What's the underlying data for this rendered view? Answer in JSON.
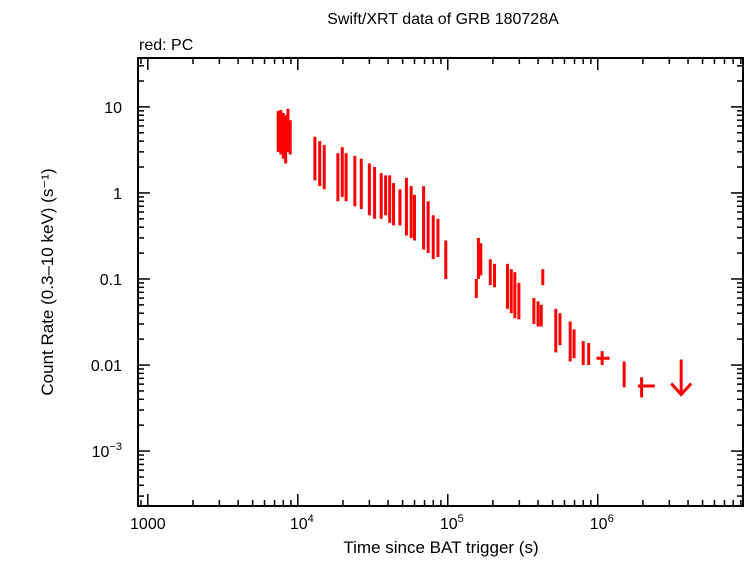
{
  "chart_data": {
    "type": "scatter",
    "title": "Swift/XRT data of GRB 180728A",
    "subtitle": "red: PC",
    "xlabel": "Time since BAT trigger (s)",
    "ylabel": "Count Rate (0.3–10 keV) (s⁻¹)",
    "xscale": "log",
    "yscale": "log",
    "xlim": [
      860,
      9300000
    ],
    "ylim": [
      0.00023,
      37
    ],
    "grid": false,
    "color": "#ff0000",
    "x_ticks": [
      {
        "value": 1000,
        "base": "1000",
        "exp": ""
      },
      {
        "value": 10000,
        "base": "10",
        "exp": "4"
      },
      {
        "value": 100000,
        "base": "10",
        "exp": "5"
      },
      {
        "value": 1000000,
        "base": "10",
        "exp": "6"
      }
    ],
    "y_ticks": [
      {
        "value": 10,
        "base": "10",
        "exp": ""
      },
      {
        "value": 1,
        "base": "1",
        "exp": ""
      },
      {
        "value": 0.1,
        "base": "0.1",
        "exp": ""
      },
      {
        "value": 0.01,
        "base": "0.01",
        "exp": ""
      },
      {
        "value": 0.001,
        "base": "10",
        "exp": "−3"
      }
    ],
    "series": [
      {
        "points": [
          {
            "x": 7400,
            "y": 5.5,
            "ylo": 3.0,
            "yhi": 9.0
          },
          {
            "x": 7700,
            "y": 5.0,
            "ylo": 2.8,
            "yhi": 9.2
          },
          {
            "x": 8000,
            "y": 4.5,
            "ylo": 2.5,
            "yhi": 8.5
          },
          {
            "x": 8300,
            "y": 4.0,
            "ylo": 2.2,
            "yhi": 8.0
          },
          {
            "x": 8600,
            "y": 5.0,
            "ylo": 3.0,
            "yhi": 9.5
          },
          {
            "x": 8900,
            "y": 4.5,
            "ylo": 2.8,
            "yhi": 7.0
          },
          {
            "x": 13000,
            "y": 2.8,
            "ylo": 1.4,
            "yhi": 4.5
          },
          {
            "x": 14000,
            "y": 2.2,
            "ylo": 1.2,
            "yhi": 4.0
          },
          {
            "x": 15000,
            "y": 2.0,
            "ylo": 1.1,
            "yhi": 3.6
          },
          {
            "x": 18500,
            "y": 1.6,
            "ylo": 0.8,
            "yhi": 2.9
          },
          {
            "x": 19800,
            "y": 1.8,
            "ylo": 0.9,
            "yhi": 3.4
          },
          {
            "x": 21000,
            "y": 1.5,
            "ylo": 0.8,
            "yhi": 2.9
          },
          {
            "x": 24000,
            "y": 1.3,
            "ylo": 0.7,
            "yhi": 2.7
          },
          {
            "x": 26500,
            "y": 1.2,
            "ylo": 0.65,
            "yhi": 2.5
          },
          {
            "x": 30000,
            "y": 1.0,
            "ylo": 0.55,
            "yhi": 2.2
          },
          {
            "x": 32500,
            "y": 0.9,
            "ylo": 0.5,
            "yhi": 2.0
          },
          {
            "x": 36000,
            "y": 0.8,
            "ylo": 0.5,
            "yhi": 1.7
          },
          {
            "x": 38500,
            "y": 0.85,
            "ylo": 0.55,
            "yhi": 1.6
          },
          {
            "x": 41000,
            "y": 0.7,
            "ylo": 0.45,
            "yhi": 1.6
          },
          {
            "x": 43500,
            "y": 0.65,
            "ylo": 0.42,
            "yhi": 1.3
          },
          {
            "x": 48000,
            "y": 0.6,
            "ylo": 0.42,
            "yhi": 1.1
          },
          {
            "x": 53000,
            "y": 0.55,
            "ylo": 0.32,
            "yhi": 1.5
          },
          {
            "x": 57000,
            "y": 0.5,
            "ylo": 0.3,
            "yhi": 1.2
          },
          {
            "x": 60000,
            "y": 0.45,
            "ylo": 0.28,
            "yhi": 0.95
          },
          {
            "x": 69000,
            "y": 0.4,
            "ylo": 0.22,
            "yhi": 1.2
          },
          {
            "x": 74000,
            "y": 0.35,
            "ylo": 0.2,
            "yhi": 0.8
          },
          {
            "x": 80000,
            "y": 0.3,
            "ylo": 0.17,
            "yhi": 0.55
          },
          {
            "x": 86000,
            "y": 0.28,
            "ylo": 0.18,
            "yhi": 0.5
          },
          {
            "x": 97000,
            "y": 0.2,
            "ylo": 0.1,
            "yhi": 0.28
          },
          {
            "x": 155000,
            "y": 0.085,
            "ylo": 0.06,
            "yhi": 0.1
          },
          {
            "x": 160000,
            "y": 0.2,
            "ylo": 0.1,
            "yhi": 0.3
          },
          {
            "x": 166000,
            "y": 0.18,
            "ylo": 0.11,
            "yhi": 0.26
          },
          {
            "x": 192000,
            "y": 0.15,
            "ylo": 0.085,
            "yhi": 0.17
          },
          {
            "x": 205000,
            "y": 0.09,
            "ylo": 0.08,
            "yhi": 0.15
          },
          {
            "x": 250000,
            "y": 0.08,
            "ylo": 0.045,
            "yhi": 0.15
          },
          {
            "x": 265000,
            "y": 0.07,
            "ylo": 0.04,
            "yhi": 0.13
          },
          {
            "x": 280000,
            "y": 0.06,
            "ylo": 0.035,
            "yhi": 0.12
          },
          {
            "x": 298000,
            "y": 0.05,
            "ylo": 0.034,
            "yhi": 0.09
          },
          {
            "x": 430000,
            "y": 0.1,
            "ylo": 0.085,
            "yhi": 0.13
          },
          {
            "x": 375000,
            "y": 0.045,
            "ylo": 0.03,
            "yhi": 0.06
          },
          {
            "x": 400000,
            "y": 0.04,
            "ylo": 0.028,
            "yhi": 0.055
          },
          {
            "x": 420000,
            "y": 0.035,
            "ylo": 0.028,
            "yhi": 0.05
          },
          {
            "x": 525000,
            "y": 0.02,
            "ylo": 0.014,
            "yhi": 0.045
          },
          {
            "x": 560000,
            "y": 0.03,
            "ylo": 0.017,
            "yhi": 0.04
          },
          {
            "x": 655000,
            "y": 0.015,
            "ylo": 0.011,
            "yhi": 0.032
          },
          {
            "x": 695000,
            "y": 0.018,
            "ylo": 0.012,
            "yhi": 0.026
          },
          {
            "x": 800000,
            "y": 0.014,
            "ylo": 0.01,
            "yhi": 0.019
          },
          {
            "x": 870000,
            "y": 0.013,
            "ylo": 0.01,
            "yhi": 0.018
          },
          {
            "x": 1070000,
            "y": 0.012,
            "ylo": 0.01,
            "yhi": 0.0145,
            "xlo": 980000,
            "xhi": 1200000
          },
          {
            "x": 1500000,
            "y": 0.008,
            "ylo": 0.0055,
            "yhi": 0.011
          },
          {
            "x": 1960000,
            "y": 0.0057,
            "ylo": 0.0042,
            "yhi": 0.0072,
            "xlo": 1850000,
            "xhi": 2400000
          }
        ],
        "upper_limits": [
          {
            "x": 3600000,
            "y": 0.0116,
            "xlo": 3600000,
            "xhi": 3600000
          }
        ]
      }
    ]
  }
}
